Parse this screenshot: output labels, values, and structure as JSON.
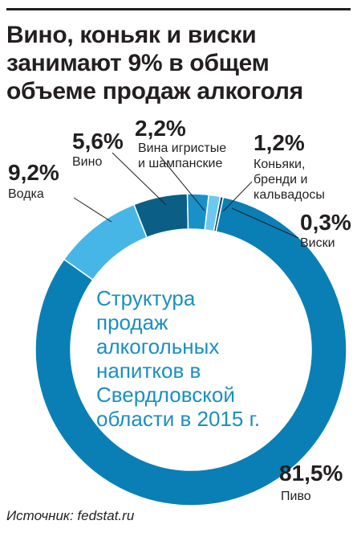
{
  "headline": [
    "Вино, коньяк и виски",
    "занимают 9% в общем",
    "объеме продаж алкоголя"
  ],
  "center_text": [
    "Структура",
    "продаж",
    "алкогольных",
    "напитков в",
    "Свердловской",
    "области в 2015 г."
  ],
  "source": "Источник: fedstat.ru",
  "chart_data": {
    "type": "pie",
    "variant": "donut",
    "title": "Структура продаж алкогольных напитков в Свердловской области в 2015 г.",
    "unit": "%",
    "slices": [
      {
        "label": "Пиво",
        "label_lines": [
          "Пиво"
        ],
        "value": 81.5,
        "display": "81,5%",
        "color": "#0a7fb5"
      },
      {
        "label": "Водка",
        "label_lines": [
          "Водка"
        ],
        "value": 9.2,
        "display": "9,2%",
        "color": "#46b6e6"
      },
      {
        "label": "Вино",
        "label_lines": [
          "Вино"
        ],
        "value": 5.6,
        "display": "5,6%",
        "color": "#0b5f86"
      },
      {
        "label": "Вина игристые и шампанские",
        "label_lines": [
          "Вина игристые",
          "и шампанские"
        ],
        "value": 2.2,
        "display": "2,2%",
        "color": "#1891c8"
      },
      {
        "label": "Коньяки, бренди и кальвадосы",
        "label_lines": [
          "Коньяки,",
          "бренди и",
          "кальвадосы"
        ],
        "value": 1.2,
        "display": "1,2%",
        "color": "#6cc8ee"
      },
      {
        "label": "Виски",
        "label_lines": [
          "Виски"
        ],
        "value": 0.3,
        "display": "0,3%",
        "color": "#07456b"
      }
    ]
  }
}
